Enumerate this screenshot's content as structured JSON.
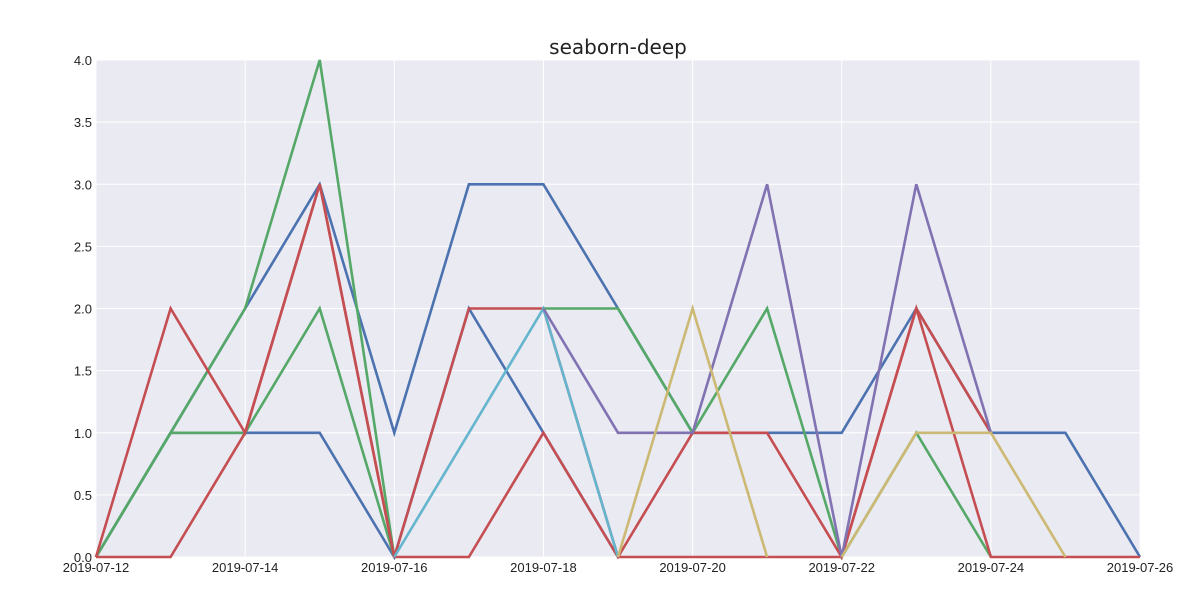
{
  "chart_data": {
    "type": "line",
    "title": "seaborn-deep",
    "xlabel": "",
    "ylabel": "",
    "x": [
      "2019-07-12",
      "2019-07-13",
      "2019-07-14",
      "2019-07-15",
      "2019-07-16",
      "2019-07-17",
      "2019-07-18",
      "2019-07-19",
      "2019-07-20",
      "2019-07-21",
      "2019-07-22",
      "2019-07-23",
      "2019-07-24",
      "2019-07-25",
      "2019-07-26"
    ],
    "xticks": [
      "2019-07-12",
      "2019-07-14",
      "2019-07-16",
      "2019-07-18",
      "2019-07-20",
      "2019-07-22",
      "2019-07-24",
      "2019-07-26"
    ],
    "yticks": [
      "0.0",
      "0.5",
      "1.0",
      "1.5",
      "2.0",
      "2.5",
      "3.0",
      "3.5",
      "4.0"
    ],
    "ylim": [
      0,
      4
    ],
    "xlim": [
      "2019-07-12",
      "2019-07-26"
    ],
    "grid": true,
    "background": "#EAEAF2",
    "gridColor": "#FFFFFF",
    "series": [
      {
        "color": "#4C72B0",
        "values": [
          0,
          1,
          2,
          3,
          1,
          3,
          3,
          2,
          1,
          1,
          1,
          2,
          1,
          1,
          0
        ]
      },
      {
        "color": "#4C72B0",
        "values": [
          0,
          1,
          1,
          1,
          0,
          2,
          1,
          0,
          null,
          null,
          null,
          null,
          null,
          null,
          null
        ]
      },
      {
        "color": "#55A868",
        "values": [
          0,
          1,
          2,
          4,
          0,
          null,
          null,
          null,
          null,
          null,
          null,
          null,
          null,
          null,
          null
        ]
      },
      {
        "color": "#55A868",
        "values": [
          0,
          1,
          1,
          2,
          0,
          null,
          null,
          null,
          null,
          null,
          null,
          null,
          null,
          null,
          null
        ]
      },
      {
        "color": "#55A868",
        "values": [
          null,
          null,
          null,
          null,
          null,
          null,
          2,
          2,
          1,
          2,
          0,
          1,
          0,
          null,
          null
        ]
      },
      {
        "color": "#C44E52",
        "values": [
          0,
          2,
          1,
          3,
          0,
          null,
          null,
          null,
          null,
          null,
          null,
          null,
          null,
          null,
          null
        ]
      },
      {
        "color": "#C44E52",
        "values": [
          0,
          0,
          1,
          3,
          0,
          2,
          2,
          0,
          null,
          null,
          null,
          null,
          null,
          null,
          null
        ]
      },
      {
        "color": "#C44E52",
        "values": [
          null,
          null,
          null,
          null,
          0,
          0,
          1,
          0,
          1,
          1,
          0,
          2,
          1,
          null,
          null
        ]
      },
      {
        "color": "#C44E52",
        "values": [
          null,
          null,
          null,
          null,
          null,
          null,
          null,
          0,
          0,
          0,
          0,
          2,
          0,
          0,
          0
        ]
      },
      {
        "color": "#64B5CD",
        "values": [
          null,
          null,
          null,
          null,
          0,
          1,
          2,
          0,
          null,
          null,
          null,
          null,
          null,
          null,
          null
        ]
      },
      {
        "color": "#8172B2",
        "values": [
          null,
          null,
          null,
          null,
          null,
          null,
          2,
          1,
          1,
          3,
          0,
          3,
          1,
          null,
          null
        ]
      },
      {
        "color": "#CCB974",
        "values": [
          null,
          null,
          null,
          null,
          null,
          null,
          null,
          0,
          2,
          0,
          null,
          null,
          null,
          null,
          null
        ]
      },
      {
        "color": "#CCB974",
        "values": [
          null,
          null,
          null,
          null,
          null,
          null,
          null,
          null,
          null,
          null,
          0,
          1,
          1,
          0,
          null
        ]
      }
    ]
  }
}
